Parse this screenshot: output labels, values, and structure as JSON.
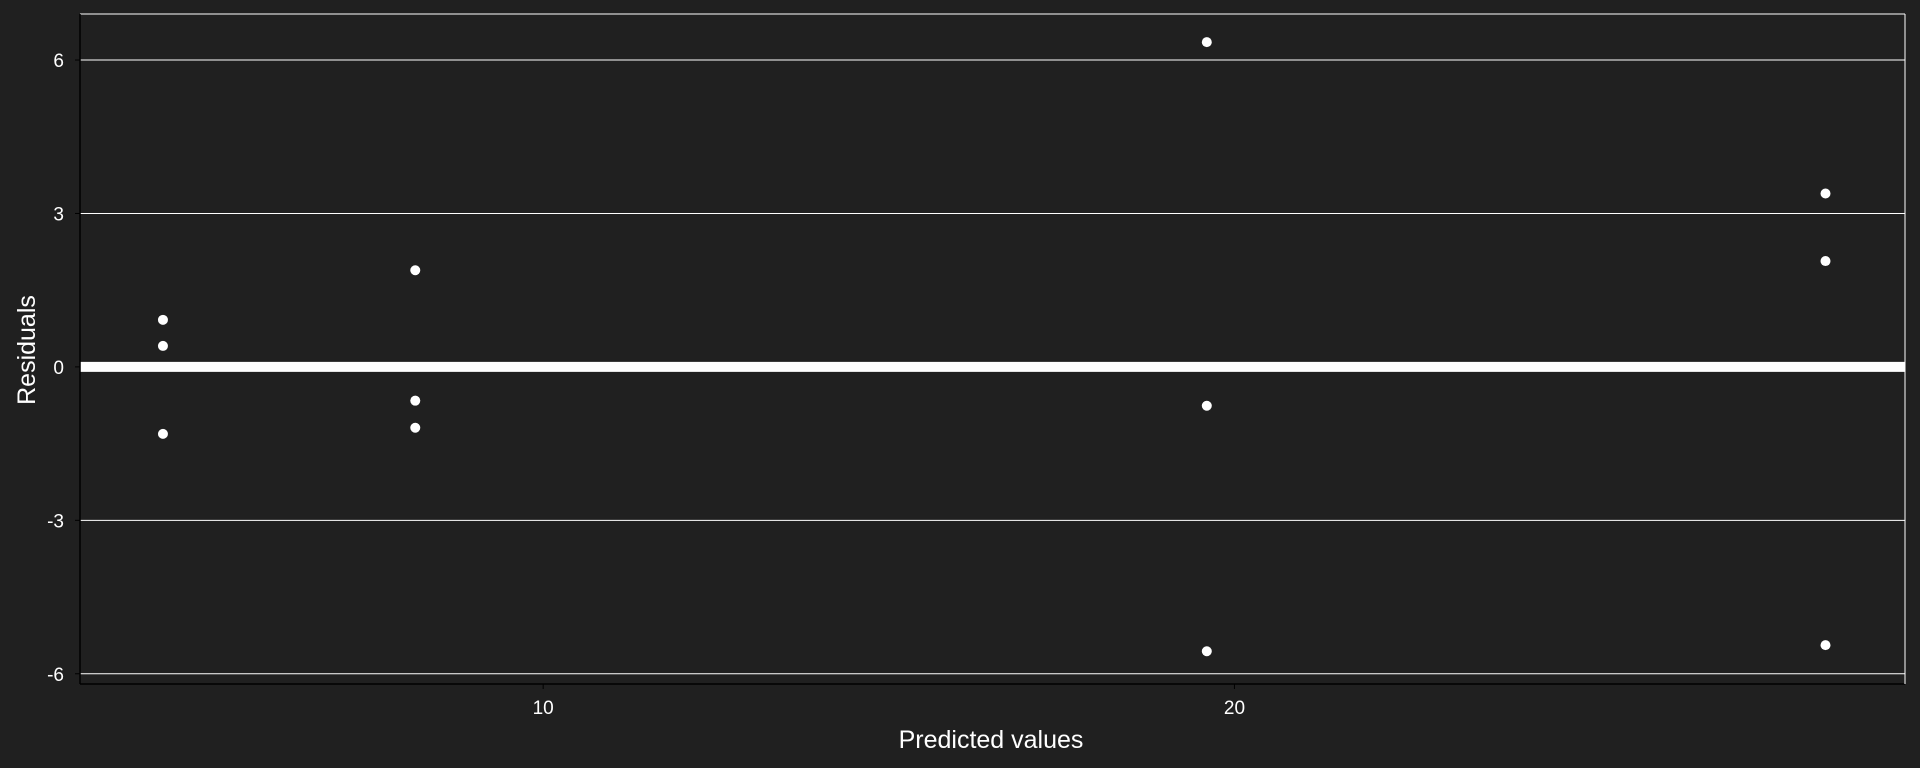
{
  "chart_data": {
    "type": "scatter",
    "title": "",
    "xlabel": "Predicted values",
    "ylabel": "Residuals",
    "xlim": [
      3.3,
      29.7
    ],
    "ylim": [
      -6.2,
      6.9
    ],
    "xticks": [
      {
        "value": 10,
        "label": "10"
      },
      {
        "value": 20,
        "label": "20"
      }
    ],
    "yticks": [
      {
        "value": -6,
        "label": "-6"
      },
      {
        "value": -3,
        "label": "-3"
      },
      {
        "value": 0,
        "label": "0"
      },
      {
        "value": 3,
        "label": "3"
      },
      {
        "value": 6,
        "label": "6"
      }
    ],
    "grid": "horizontal",
    "reference_line": {
      "y": 0
    },
    "points": [
      {
        "x": 4.5,
        "y": 0.92
      },
      {
        "x": 4.5,
        "y": 0.41
      },
      {
        "x": 4.5,
        "y": -1.31
      },
      {
        "x": 8.15,
        "y": 1.89
      },
      {
        "x": 8.15,
        "y": -0.66
      },
      {
        "x": 8.15,
        "y": -1.19
      },
      {
        "x": 19.6,
        "y": 6.35
      },
      {
        "x": 19.6,
        "y": -0.76
      },
      {
        "x": 19.6,
        "y": -5.56
      },
      {
        "x": 28.55,
        "y": 3.39
      },
      {
        "x": 28.55,
        "y": 2.07
      },
      {
        "x": 28.55,
        "y": -5.44
      }
    ],
    "colors": {
      "background": "#202020",
      "foreground": "#ffffff"
    }
  }
}
